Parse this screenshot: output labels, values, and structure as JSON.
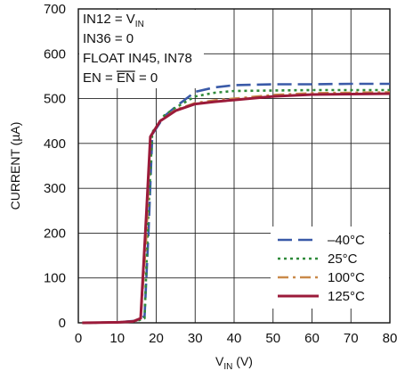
{
  "chart_data": {
    "type": "line",
    "xlabel": {
      "main": "V",
      "sub": "IN",
      "unit": " (V)"
    },
    "ylabel": "CURRENT (µA)",
    "xlim": [
      0,
      80
    ],
    "ylim": [
      0,
      700
    ],
    "xticks": [
      0,
      10,
      20,
      30,
      40,
      50,
      60,
      70,
      80
    ],
    "yticks": [
      0,
      100,
      200,
      300,
      400,
      500,
      600,
      700
    ],
    "grid": true,
    "legend_position": "bottom-right",
    "annotations": {
      "line1": {
        "main": "IN12 = V",
        "sub": "IN"
      },
      "line2": "IN36  = 0",
      "line3": "FLOAT IN45, IN78",
      "line4": {
        "prefix": "EN = ",
        "overlined": "EN",
        "suffix": " = 0"
      }
    },
    "series": [
      {
        "name": "–40°C",
        "color": "#3a5aa8",
        "dash": "long-dash",
        "points": [
          [
            1,
            0
          ],
          [
            10,
            1
          ],
          [
            15,
            5
          ],
          [
            17,
            15
          ],
          [
            18,
            200
          ],
          [
            19,
            420
          ],
          [
            22,
            460
          ],
          [
            25,
            482
          ],
          [
            30,
            515
          ],
          [
            35,
            525
          ],
          [
            40,
            530
          ],
          [
            50,
            532
          ],
          [
            60,
            532
          ],
          [
            70,
            533
          ],
          [
            80,
            533
          ]
        ]
      },
      {
        "name": "25°C",
        "color": "#2f8a3a",
        "dash": "dot",
        "points": [
          [
            1,
            0
          ],
          [
            10,
            1
          ],
          [
            15,
            4
          ],
          [
            17,
            10
          ],
          [
            18,
            250
          ],
          [
            19,
            425
          ],
          [
            22,
            462
          ],
          [
            25,
            480
          ],
          [
            30,
            505
          ],
          [
            35,
            513
          ],
          [
            40,
            517
          ],
          [
            50,
            518
          ],
          [
            60,
            519
          ],
          [
            70,
            519
          ],
          [
            80,
            519
          ]
        ]
      },
      {
        "name": "100°C",
        "color": "#c98a4a",
        "dash": "dash-dot",
        "points": [
          [
            1,
            0
          ],
          [
            10,
            1
          ],
          [
            14,
            3
          ],
          [
            16,
            8
          ],
          [
            17.5,
            200
          ],
          [
            18.5,
            415
          ],
          [
            21,
            450
          ],
          [
            25,
            475
          ],
          [
            30,
            490
          ],
          [
            35,
            496
          ],
          [
            40,
            500
          ],
          [
            50,
            508
          ],
          [
            60,
            512
          ],
          [
            70,
            513
          ],
          [
            80,
            514
          ]
        ]
      },
      {
        "name": "125°C",
        "color": "#9b1b3a",
        "dash": "solid",
        "points": [
          [
            1,
            0
          ],
          [
            10,
            1
          ],
          [
            14,
            3
          ],
          [
            16,
            10
          ],
          [
            17.5,
            250
          ],
          [
            18.5,
            415
          ],
          [
            21,
            450
          ],
          [
            25,
            473
          ],
          [
            30,
            488
          ],
          [
            35,
            493
          ],
          [
            40,
            497
          ],
          [
            50,
            505
          ],
          [
            60,
            509
          ],
          [
            70,
            510
          ],
          [
            80,
            511
          ]
        ]
      }
    ]
  }
}
